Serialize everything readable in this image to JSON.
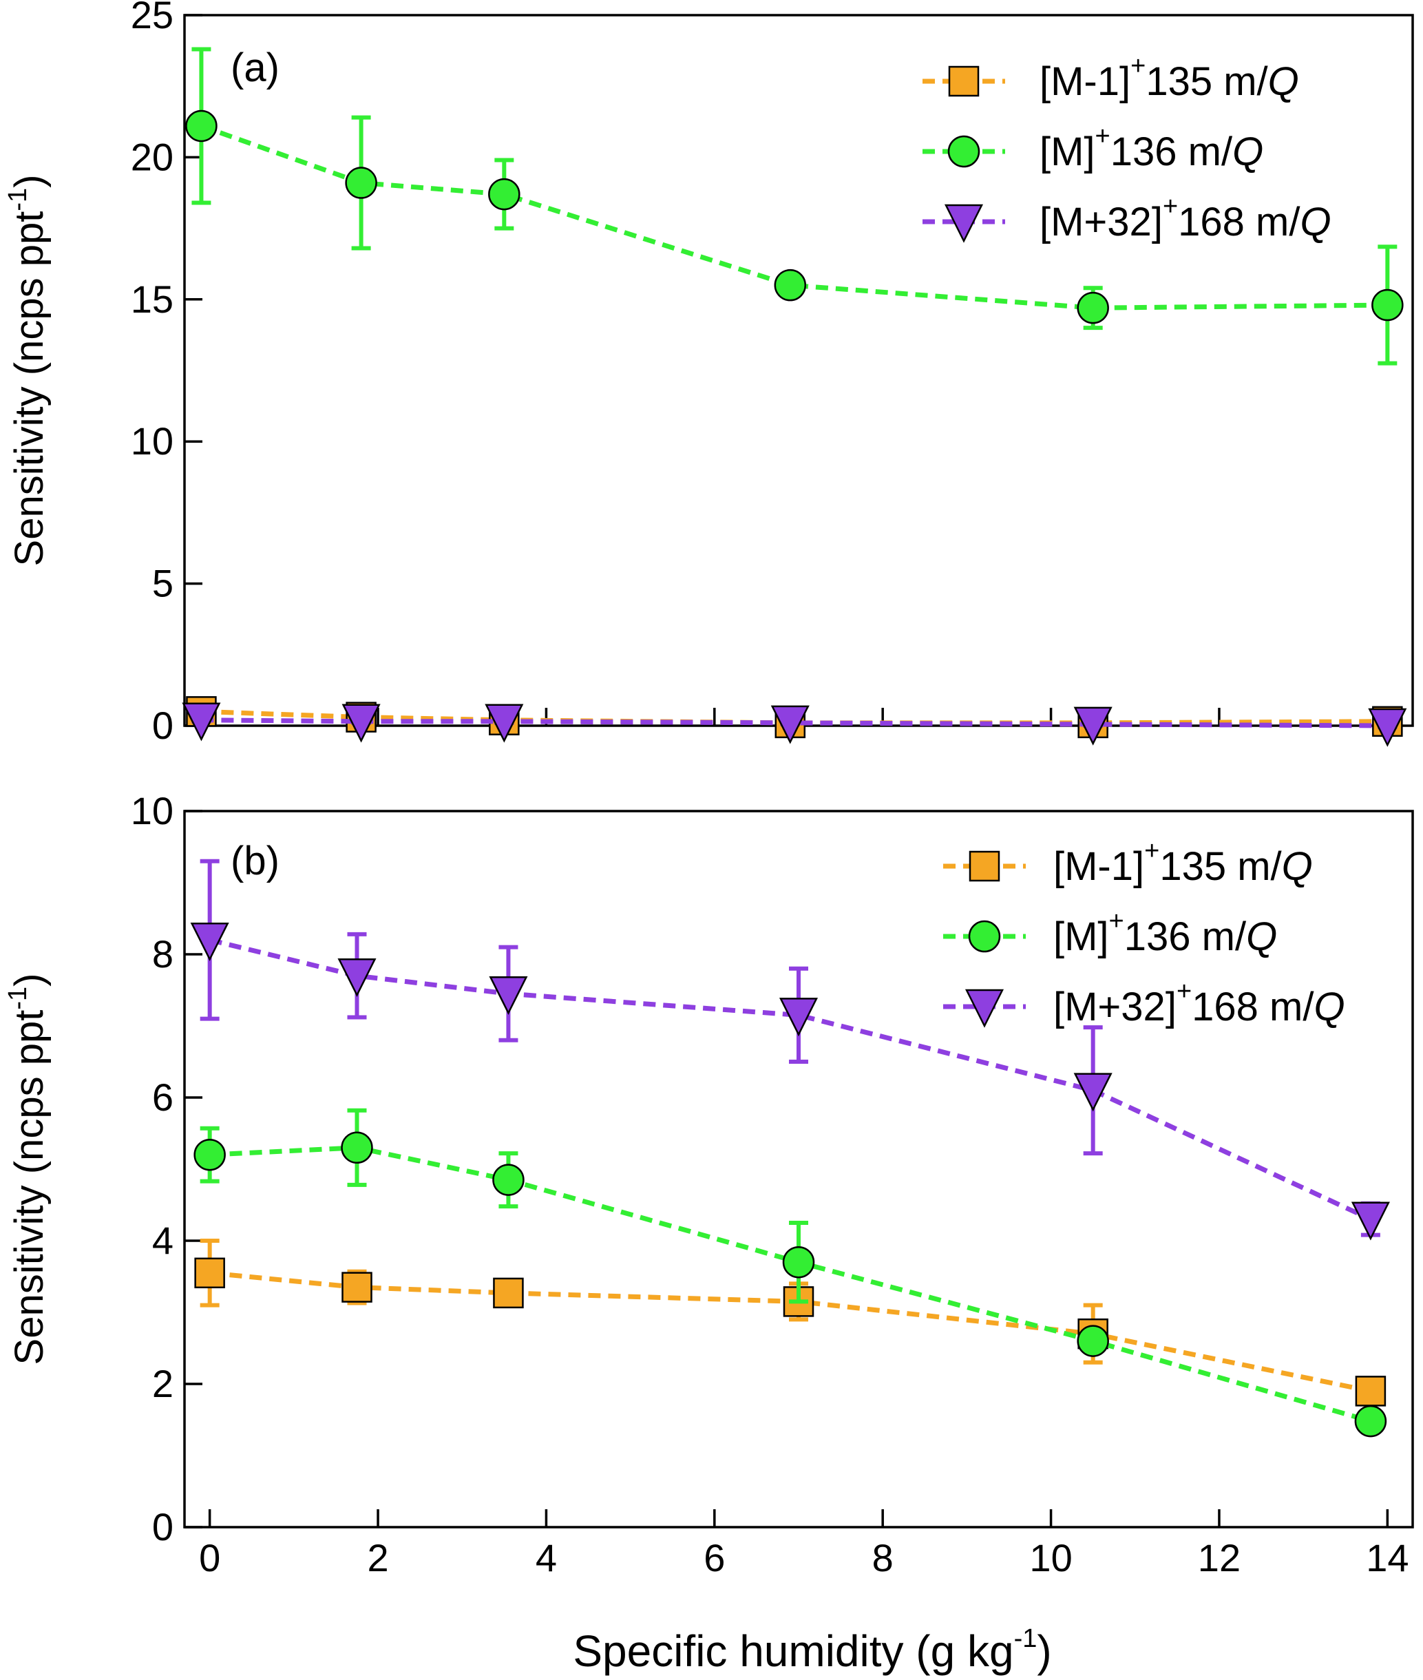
{
  "chart_data": [
    {
      "type": "line",
      "panel_label": "(a)",
      "xlim": [
        -0.3,
        14.3
      ],
      "ylim": [
        0,
        25
      ],
      "xticks": [
        0,
        2,
        4,
        6,
        8,
        10,
        12,
        14
      ],
      "yticks": [
        0,
        5,
        10,
        15,
        20,
        25
      ],
      "ytick_labels": [
        "0",
        "5",
        "10",
        "15",
        "20",
        "25"
      ],
      "xtick_labels_visible": false,
      "ylabel_main": "Sensitivity (ncps ppt",
      "ylabel_sup": "-1",
      "ylabel_close": ")",
      "legend_position": "top-right",
      "series": [
        {
          "name": "[M-1]",
          "name_sup": "+",
          "name_rest": "135 m/",
          "name_italic": "Q",
          "color": "#F5A623",
          "marker": "square",
          "x": [
            -0.1,
            1.8,
            3.5,
            6.9,
            10.5,
            14.0
          ],
          "y": [
            0.5,
            0.3,
            0.2,
            0.1,
            0.1,
            0.15
          ],
          "err": [
            0.1,
            0.1,
            0.1,
            0.05,
            0.05,
            0.05
          ]
        },
        {
          "name": "[M]",
          "name_sup": "+",
          "name_rest": "136 m/",
          "name_italic": "Q",
          "color": "#33EE33",
          "marker": "circle",
          "x": [
            -0.1,
            1.8,
            3.5,
            6.9,
            10.5,
            14.0
          ],
          "y": [
            21.1,
            19.1,
            18.7,
            15.5,
            14.7,
            14.8
          ],
          "err": [
            2.7,
            2.3,
            1.2,
            0,
            0.7,
            2.05
          ]
        },
        {
          "name": "[M+32]",
          "name_sup": "+",
          "name_rest": "168 m/",
          "name_italic": "Q",
          "color": "#8E3FE0",
          "marker": "triangle-down",
          "x": [
            -0.1,
            1.8,
            3.5,
            6.9,
            10.5,
            14.0
          ],
          "y": [
            0.2,
            0.15,
            0.15,
            0.1,
            0.05,
            0.0
          ],
          "err": [
            0.05,
            0.05,
            0.05,
            0.05,
            0.05,
            0.05
          ]
        }
      ]
    },
    {
      "type": "line",
      "panel_label": "(b)",
      "xlim": [
        -0.3,
        14.3
      ],
      "ylim": [
        0,
        10
      ],
      "xticks": [
        0,
        2,
        4,
        6,
        8,
        10,
        12,
        14
      ],
      "xtick_labels": [
        "0",
        "2",
        "4",
        "6",
        "8",
        "10",
        "12",
        "14"
      ],
      "yticks": [
        0,
        2,
        4,
        6,
        8,
        10
      ],
      "ytick_labels": [
        "0",
        "2",
        "4",
        "6",
        "8",
        "10"
      ],
      "ylabel_main": "Sensitivity (ncps ppt",
      "ylabel_sup": "-1",
      "ylabel_close": ")",
      "xlabel_main": "Specific humidity (g kg",
      "xlabel_sup": "-1",
      "xlabel_close": ")",
      "legend_position": "top-right",
      "series": [
        {
          "name": "[M-1]",
          "name_sup": "+",
          "name_rest": "135 m/",
          "name_italic": "Q",
          "color": "#F5A623",
          "marker": "square",
          "x": [
            0.0,
            1.75,
            3.55,
            7.0,
            10.5,
            13.8
          ],
          "y": [
            3.55,
            3.35,
            3.27,
            3.15,
            2.7,
            1.9
          ],
          "err": [
            0.45,
            0.22,
            0.15,
            0.25,
            0.4,
            0.1
          ]
        },
        {
          "name": "[M]",
          "name_sup": "+",
          "name_rest": "136 m/",
          "name_italic": "Q",
          "color": "#33EE33",
          "marker": "circle",
          "x": [
            0.0,
            1.75,
            3.55,
            7.0,
            10.5,
            13.8
          ],
          "y": [
            5.2,
            5.3,
            4.85,
            3.7,
            2.6,
            1.48
          ],
          "err": [
            0.37,
            0.52,
            0.37,
            0.55,
            0,
            0
          ]
        },
        {
          "name": "[M+32]",
          "name_sup": "+",
          "name_rest": "168 m/",
          "name_italic": "Q",
          "color": "#8E3FE0",
          "marker": "triangle-down",
          "x": [
            0.0,
            1.75,
            3.55,
            7.0,
            10.5,
            13.8
          ],
          "y": [
            8.2,
            7.7,
            7.45,
            7.15,
            6.1,
            4.3
          ],
          "err": [
            1.1,
            0.58,
            0.65,
            0.65,
            0.88,
            0.22
          ]
        }
      ]
    }
  ]
}
